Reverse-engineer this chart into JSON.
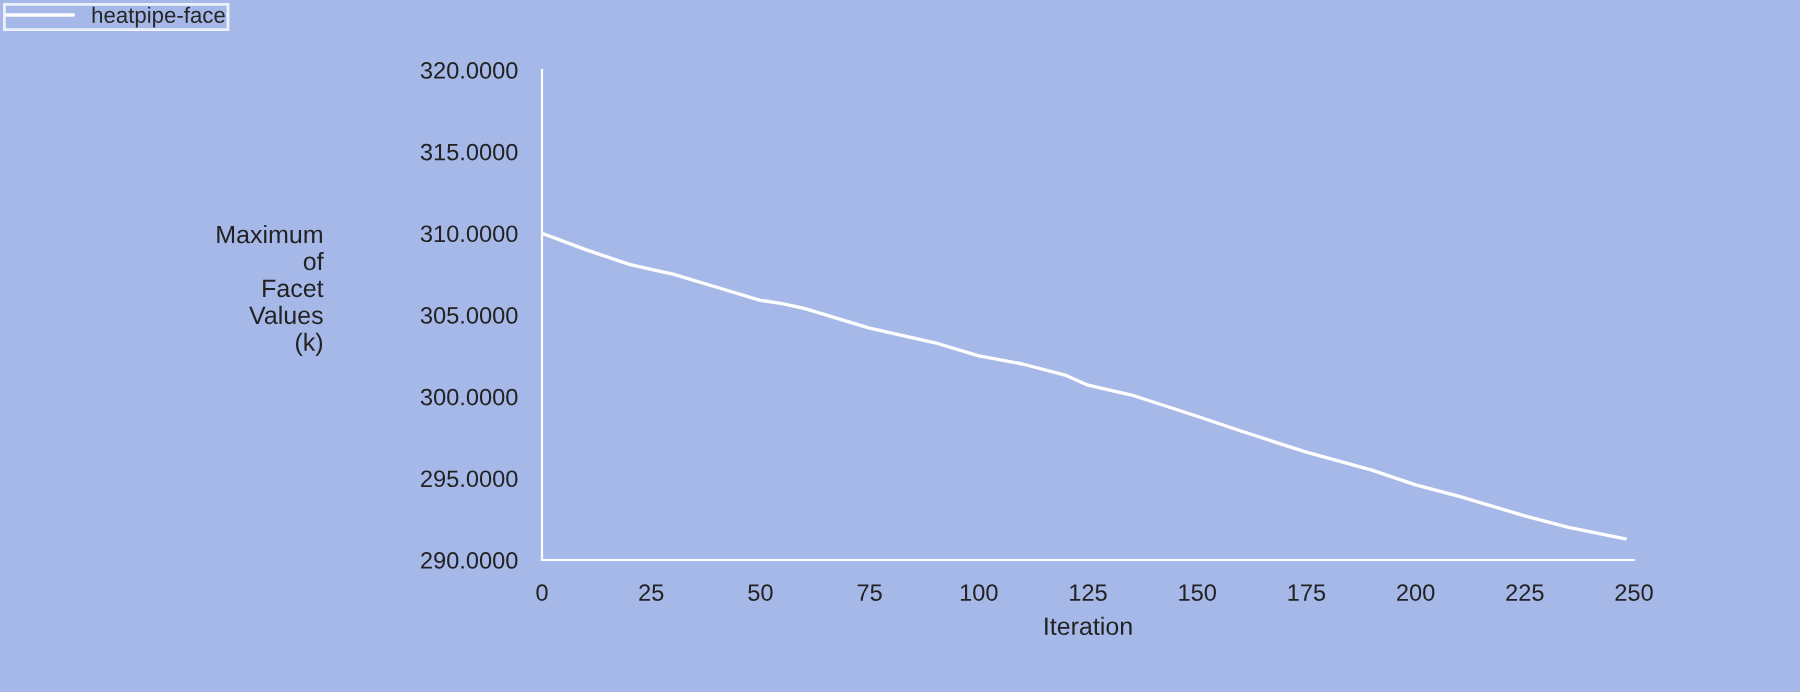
{
  "chart_data": {
    "type": "line",
    "xlabel": "Iteration",
    "ylabel": "Maximum\nof\nFacet\nValues\n(k)",
    "series": [
      {
        "name": "heatpipe-face",
        "color": "#ffffff",
        "x": [
          0,
          10,
          20,
          25,
          30,
          40,
          50,
          55,
          60,
          75,
          90,
          100,
          110,
          120,
          125,
          135,
          150,
          160,
          175,
          190,
          200,
          210,
          225,
          235,
          248
        ],
        "values": [
          310.0,
          309.0,
          308.1,
          307.8,
          307.5,
          306.7,
          305.9,
          305.7,
          305.4,
          304.2,
          303.3,
          302.5,
          302.0,
          301.3,
          300.7,
          300.1,
          298.8,
          297.9,
          296.6,
          295.5,
          294.6,
          293.9,
          292.7,
          292.0,
          291.3
        ]
      }
    ],
    "xlim": [
      0,
      250
    ],
    "xticks": [
      0,
      25,
      50,
      75,
      100,
      125,
      150,
      175,
      200,
      225,
      250
    ],
    "ylim": [
      290,
      320
    ],
    "yticks": [
      {
        "value": 290,
        "label": "290.0000"
      },
      {
        "value": 295,
        "label": "295.0000"
      },
      {
        "value": 300,
        "label": "300.0000"
      },
      {
        "value": 305,
        "label": "305.0000"
      },
      {
        "value": 310,
        "label": "310.0000"
      },
      {
        "value": 315,
        "label": "315.0000"
      },
      {
        "value": 320,
        "label": "320.0000"
      }
    ],
    "grid": false,
    "legend": "top left",
    "marker": "none",
    "line_style": "solid"
  }
}
